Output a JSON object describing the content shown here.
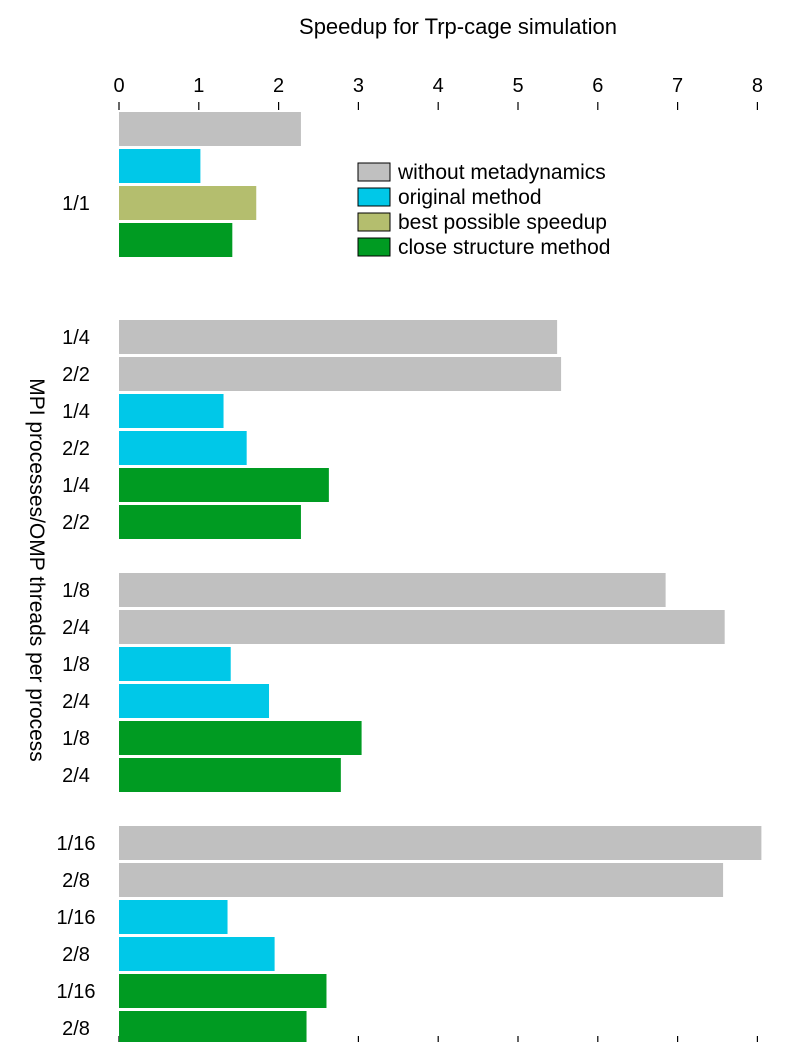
{
  "chart_data": {
    "type": "bar",
    "orientation": "horizontal",
    "title": "Speedup for Trp-cage simulation",
    "xlabel": "",
    "ylabel": "MPI processes/OMP threads per process",
    "xlim": [
      0,
      8.3
    ],
    "xticks": [
      0,
      1,
      2,
      3,
      4,
      5,
      6,
      7,
      8
    ],
    "x_axis_position": "top",
    "grid": false,
    "legend_position": "top-right",
    "series": [
      {
        "name": "without metadynamics",
        "color": "#c0c0c0"
      },
      {
        "name": "original method",
        "color": "#00c8e8"
      },
      {
        "name": "best possible speedup",
        "color": "#b4be6e"
      },
      {
        "name": "close structure method",
        "color": "#009b22"
      }
    ],
    "bars": [
      {
        "group": 0,
        "series": 0,
        "value": 2.28,
        "label": ""
      },
      {
        "group": 0,
        "series": 1,
        "value": 1.02,
        "label": ""
      },
      {
        "group": 0,
        "series": 2,
        "value": 1.72,
        "label": "1/1"
      },
      {
        "group": 0,
        "series": 3,
        "value": 1.42,
        "label": ""
      },
      {
        "group": 1,
        "series": 0,
        "value": 5.49,
        "label": "1/4"
      },
      {
        "group": 1,
        "series": 0,
        "value": 5.54,
        "label": "2/2"
      },
      {
        "group": 1,
        "series": 1,
        "value": 1.31,
        "label": "1/4"
      },
      {
        "group": 1,
        "series": 1,
        "value": 1.6,
        "label": "2/2"
      },
      {
        "group": 1,
        "series": 3,
        "value": 2.63,
        "label": "1/4"
      },
      {
        "group": 1,
        "series": 3,
        "value": 2.28,
        "label": "2/2"
      },
      {
        "group": 2,
        "series": 0,
        "value": 6.85,
        "label": "1/8"
      },
      {
        "group": 2,
        "series": 0,
        "value": 7.59,
        "label": "2/4"
      },
      {
        "group": 2,
        "series": 1,
        "value": 1.4,
        "label": "1/8"
      },
      {
        "group": 2,
        "series": 1,
        "value": 1.88,
        "label": "2/4"
      },
      {
        "group": 2,
        "series": 3,
        "value": 3.04,
        "label": "1/8"
      },
      {
        "group": 2,
        "series": 3,
        "value": 2.78,
        "label": "2/4"
      },
      {
        "group": 3,
        "series": 0,
        "value": 8.05,
        "label": "1/16"
      },
      {
        "group": 3,
        "series": 0,
        "value": 7.57,
        "label": "2/8"
      },
      {
        "group": 3,
        "series": 1,
        "value": 1.36,
        "label": "1/16"
      },
      {
        "group": 3,
        "series": 1,
        "value": 1.95,
        "label": "2/8"
      },
      {
        "group": 3,
        "series": 3,
        "value": 2.6,
        "label": "1/16"
      },
      {
        "group": 3,
        "series": 3,
        "value": 2.35,
        "label": "2/8"
      }
    ]
  }
}
